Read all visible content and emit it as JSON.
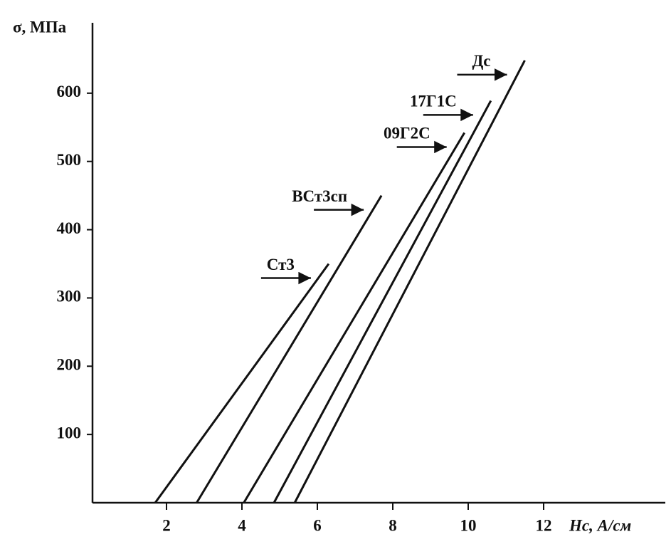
{
  "chart_data": {
    "type": "line",
    "y_label": "σ, МПа",
    "x_label": "Hc, А/см",
    "xlim": [
      0,
      15
    ],
    "ylim": [
      0,
      700
    ],
    "xticks": [
      2,
      4,
      6,
      8,
      10,
      12
    ],
    "yticks": [
      100,
      200,
      300,
      400,
      500,
      600
    ],
    "series": [
      {
        "name": "Ст3",
        "color": "#111111",
        "x": [
          1.7,
          6.3
        ],
        "values": [
          0,
          350
        ]
      },
      {
        "name": "ВСт3сп",
        "color": "#111111",
        "x": [
          2.8,
          7.7
        ],
        "values": [
          0,
          450
        ]
      },
      {
        "name": "09Г2С",
        "color": "#111111",
        "x": [
          4.05,
          9.9
        ],
        "values": [
          0,
          542
        ]
      },
      {
        "name": "17Г1С",
        "color": "#111111",
        "x": [
          4.85,
          10.6
        ],
        "values": [
          0,
          589
        ]
      },
      {
        "name": "Дс",
        "color": "#111111",
        "x": [
          5.4,
          11.5
        ],
        "values": [
          0,
          648
        ]
      }
    ]
  }
}
